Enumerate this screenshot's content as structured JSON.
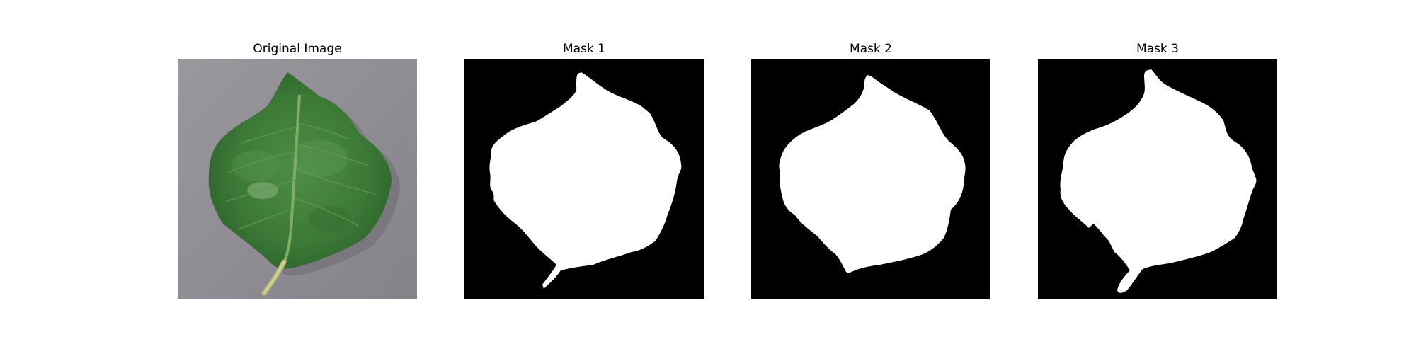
{
  "figure": {
    "panels": [
      {
        "title": "Original Image",
        "content": "leaf-photo"
      },
      {
        "title": "Mask 1",
        "content": "binary-mask"
      },
      {
        "title": "Mask 2",
        "content": "binary-mask"
      },
      {
        "title": "Mask 3",
        "content": "binary-mask"
      }
    ]
  },
  "colors": {
    "background": "#ffffff",
    "photo_background": "#8f8d94",
    "leaf_dark": "#2f6a2d",
    "leaf_mid": "#4b8a45",
    "leaf_light": "#6aa35e",
    "stem": "#b9c07a",
    "mask_background": "#000000",
    "mask_foreground": "#ffffff"
  }
}
